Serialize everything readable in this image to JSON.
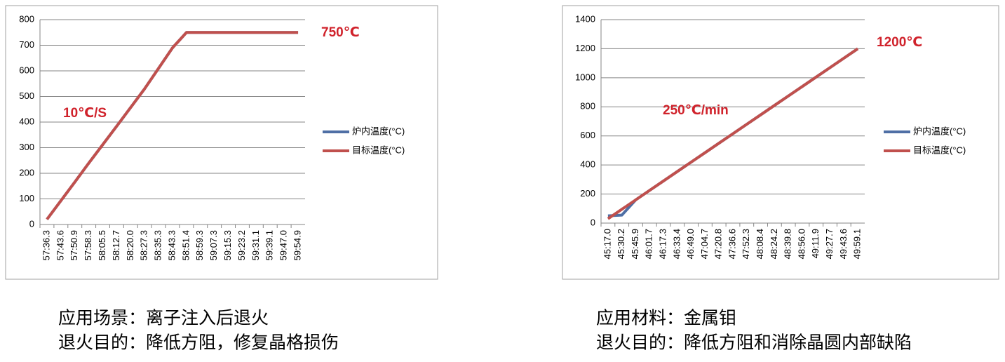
{
  "chart_data": [
    {
      "type": "line",
      "categories": [
        "57:36.3",
        "57:43.6",
        "57:50.9",
        "57:58.3",
        "58:05.5",
        "58:12.7",
        "58:20.0",
        "58:27.3",
        "58:35.3",
        "58:43.3",
        "58:51.4",
        "58:59.3",
        "59:07.3",
        "59:15.3",
        "59:23.2",
        "59:31.1",
        "59:39.1",
        "59:47.0",
        "59:54.9"
      ],
      "series": [
        {
          "name": "炉内温度(°C)",
          "color": "#4f6fa5",
          "values": [
            20,
            93,
            166,
            240,
            312,
            384,
            457,
            530,
            610,
            690,
            750,
            750,
            750,
            750,
            750,
            750,
            750,
            750,
            750
          ]
        },
        {
          "name": "目标温度(°C)",
          "color": "#c0504d",
          "values": [
            20,
            93,
            166,
            240,
            312,
            384,
            457,
            530,
            610,
            690,
            750,
            750,
            750,
            750,
            750,
            750,
            750,
            750,
            750
          ]
        }
      ],
      "ylim": [
        0,
        800
      ],
      "yticks": [
        0,
        100,
        200,
        300,
        400,
        500,
        600,
        700,
        800
      ],
      "grid": true,
      "legend": "right",
      "annotations": [
        "10℃/S",
        "750℃"
      ],
      "caption": [
        "应用场景：离子注入后退火",
        "退火目的：降低方阻，修复晶格损伤"
      ]
    },
    {
      "type": "line",
      "categories": [
        "45:17.0",
        "45:30.2",
        "45:45.9",
        "46:01.7",
        "46:17.3",
        "46:33.4",
        "46:49.0",
        "47:04.7",
        "47:20.8",
        "47:36.6",
        "47:52.3",
        "48:08.4",
        "48:24.2",
        "48:39.8",
        "48:56.0",
        "49:11.9",
        "49:27.7",
        "49:43.6",
        "49:59.1"
      ],
      "series": [
        {
          "name": "炉内温度(°C)",
          "color": "#4f6fa5",
          "values": [
            50,
            55,
            160,
            225,
            290,
            355,
            420,
            485,
            550,
            615,
            680,
            745,
            810,
            875,
            940,
            1005,
            1070,
            1135,
            1200
          ]
        },
        {
          "name": "目标温度(°C)",
          "color": "#c0504d",
          "values": [
            30,
            95,
            160,
            225,
            290,
            355,
            420,
            485,
            550,
            615,
            680,
            745,
            810,
            875,
            940,
            1005,
            1070,
            1135,
            1200
          ]
        }
      ],
      "ylim": [
        0,
        1400
      ],
      "yticks": [
        0,
        200,
        400,
        600,
        800,
        1000,
        1200,
        1400
      ],
      "grid": true,
      "legend": "right",
      "annotations": [
        "250℃/min",
        "1200℃"
      ],
      "caption": [
        "应用材料：金属钼",
        "退火目的：降低方阻和消除晶圆内部缺陷"
      ]
    }
  ]
}
